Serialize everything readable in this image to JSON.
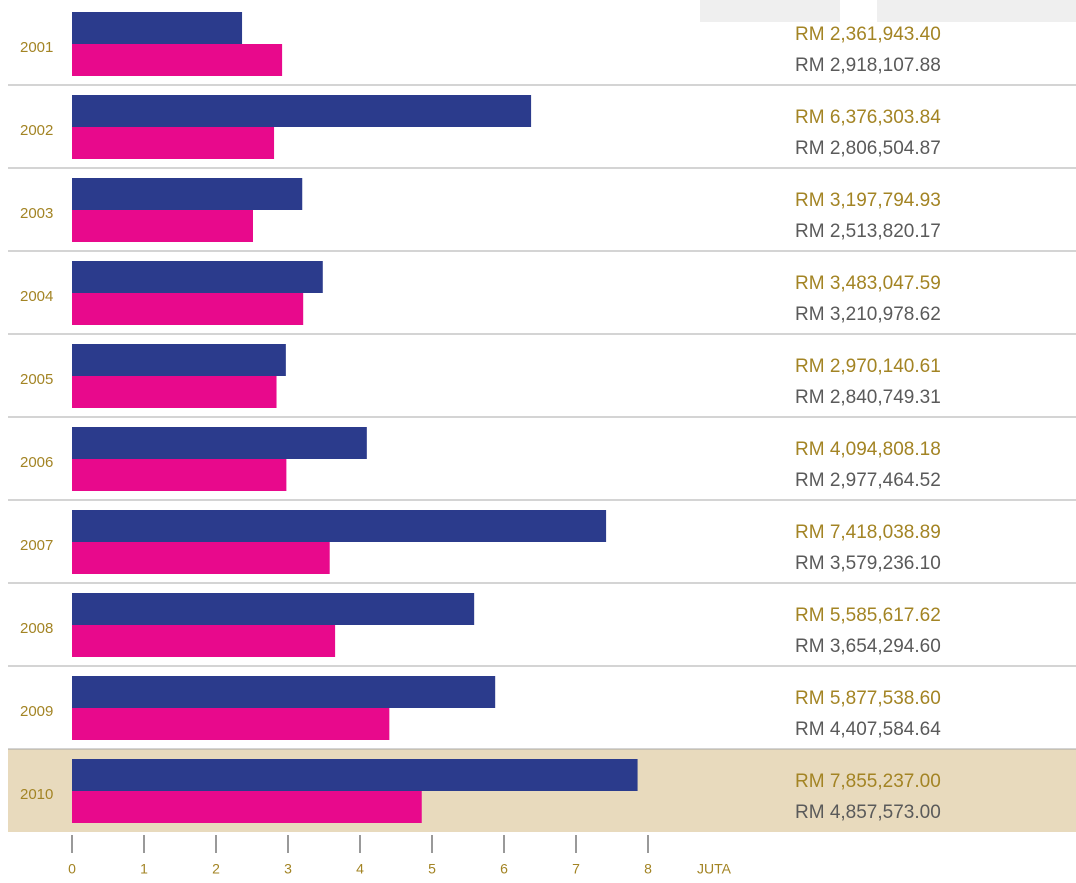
{
  "chart_data": {
    "type": "hbar",
    "x_label": "JUTA",
    "categories": [
      "2001",
      "2002",
      "2003",
      "2004",
      "2005",
      "2006",
      "2007",
      "2008",
      "2009",
      "2010"
    ],
    "series": [
      {
        "color": "#2b3b8c",
        "label_color": "#a38424",
        "values": [
          2.3619434,
          6.37630384,
          3.19779493,
          3.48304759,
          2.97014061,
          4.09480818,
          7.41803889,
          5.58561762,
          5.8775386,
          7.855237
        ],
        "value_labels": [
          "RM 2,361,943.40",
          "RM 6,376,303.84",
          "RM 3,197,794.93",
          "RM 3,483,047.59",
          "RM 2,970,140.61",
          "RM 4,094,808.18",
          "RM 7,418,038.89",
          "RM 5,585,617.62",
          "RM 5,877,538.60",
          "RM 7,855,237.00"
        ]
      },
      {
        "color": "#e8098c",
        "label_color": "#5a5a5a",
        "values": [
          2.91810788,
          2.80650487,
          2.51382017,
          3.21097862,
          2.84074931,
          2.97746452,
          3.5792361,
          3.6542946,
          4.40758464,
          4.857573
        ],
        "value_labels": [
          "RM 2,918,107.88",
          "RM 2,806,504.87",
          "RM 2,513,820.17",
          "RM 3,210,978.62",
          "RM 2,840,749.31",
          "RM 2,977,464.52",
          "RM 3,579,236.10",
          "RM 3,654,294.60",
          "RM 4,407,584.64",
          "RM 4,857,573.00"
        ]
      }
    ],
    "xlim": [
      0,
      8
    ],
    "xticks": [
      0,
      1,
      2,
      3,
      4,
      5,
      6,
      7,
      8
    ]
  }
}
